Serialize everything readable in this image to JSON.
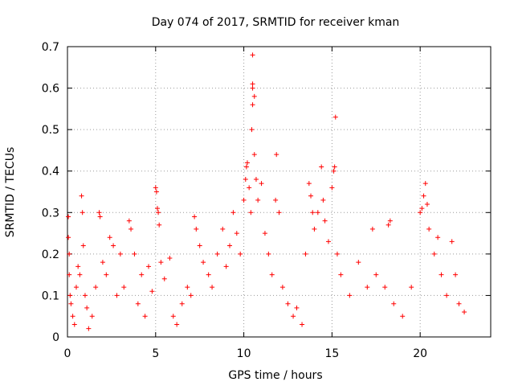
{
  "chart_data": {
    "type": "scatter",
    "title": "Day 074 of 2017, SRMTID for receiver kman",
    "xlabel": "GPS time / hours",
    "ylabel": "SRMTID / TECUs",
    "xlim": [
      0,
      24
    ],
    "ylim": [
      0,
      0.7
    ],
    "xticks": [
      0,
      5,
      10,
      15,
      20
    ],
    "xtick_labels": [
      "0",
      "5",
      "10",
      "15",
      "20"
    ],
    "yticks": [
      0,
      0.1,
      0.2,
      0.3,
      0.4,
      0.5,
      0.6,
      0.7
    ],
    "ytick_labels": [
      "0",
      "0.1",
      "0.2",
      "0.3",
      "0.4",
      "0.5",
      "0.6",
      "0.7"
    ],
    "grid": true,
    "marker": "+",
    "marker_color": "#ff0000",
    "series": [
      {
        "name": "SRMTID",
        "points": [
          [
            0.05,
            0.29
          ],
          [
            0.05,
            0.24
          ],
          [
            0.1,
            0.2
          ],
          [
            0.1,
            0.15
          ],
          [
            0.15,
            0.1
          ],
          [
            0.2,
            0.08
          ],
          [
            0.3,
            0.05
          ],
          [
            0.4,
            0.03
          ],
          [
            0.5,
            0.12
          ],
          [
            0.6,
            0.17
          ],
          [
            0.7,
            0.15
          ],
          [
            0.8,
            0.34
          ],
          [
            0.85,
            0.3
          ],
          [
            0.9,
            0.22
          ],
          [
            1.0,
            0.1
          ],
          [
            1.1,
            0.07
          ],
          [
            1.2,
            0.02
          ],
          [
            1.4,
            0.05
          ],
          [
            1.6,
            0.12
          ],
          [
            1.8,
            0.3
          ],
          [
            1.85,
            0.29
          ],
          [
            2.0,
            0.18
          ],
          [
            2.2,
            0.15
          ],
          [
            2.4,
            0.24
          ],
          [
            2.6,
            0.22
          ],
          [
            2.8,
            0.1
          ],
          [
            3.0,
            0.2
          ],
          [
            3.2,
            0.12
          ],
          [
            3.5,
            0.28
          ],
          [
            3.6,
            0.26
          ],
          [
            3.8,
            0.2
          ],
          [
            4.0,
            0.08
          ],
          [
            4.2,
            0.15
          ],
          [
            4.4,
            0.05
          ],
          [
            4.6,
            0.17
          ],
          [
            4.8,
            0.11
          ],
          [
            5.0,
            0.36
          ],
          [
            5.05,
            0.35
          ],
          [
            5.1,
            0.31
          ],
          [
            5.15,
            0.3
          ],
          [
            5.2,
            0.27
          ],
          [
            5.3,
            0.18
          ],
          [
            5.5,
            0.14
          ],
          [
            5.8,
            0.19
          ],
          [
            6.0,
            0.05
          ],
          [
            6.2,
            0.03
          ],
          [
            6.5,
            0.08
          ],
          [
            6.8,
            0.12
          ],
          [
            7.0,
            0.1
          ],
          [
            7.2,
            0.29
          ],
          [
            7.3,
            0.26
          ],
          [
            7.5,
            0.22
          ],
          [
            7.7,
            0.18
          ],
          [
            8.0,
            0.15
          ],
          [
            8.2,
            0.12
          ],
          [
            8.5,
            0.2
          ],
          [
            8.8,
            0.26
          ],
          [
            9.0,
            0.17
          ],
          [
            9.2,
            0.22
          ],
          [
            9.4,
            0.3
          ],
          [
            9.6,
            0.25
          ],
          [
            9.8,
            0.2
          ],
          [
            10.0,
            0.33
          ],
          [
            10.1,
            0.38
          ],
          [
            10.15,
            0.41
          ],
          [
            10.2,
            0.42
          ],
          [
            10.3,
            0.36
          ],
          [
            10.4,
            0.3
          ],
          [
            10.45,
            0.5
          ],
          [
            10.5,
            0.56
          ],
          [
            10.5,
            0.6
          ],
          [
            10.5,
            0.61
          ],
          [
            10.5,
            0.68
          ],
          [
            10.6,
            0.58
          ],
          [
            10.6,
            0.44
          ],
          [
            10.7,
            0.38
          ],
          [
            10.8,
            0.33
          ],
          [
            11.0,
            0.37
          ],
          [
            11.2,
            0.25
          ],
          [
            11.4,
            0.2
          ],
          [
            11.6,
            0.15
          ],
          [
            11.8,
            0.33
          ],
          [
            11.85,
            0.44
          ],
          [
            12.0,
            0.3
          ],
          [
            12.2,
            0.12
          ],
          [
            12.5,
            0.08
          ],
          [
            12.8,
            0.05
          ],
          [
            13.0,
            0.07
          ],
          [
            13.3,
            0.03
          ],
          [
            13.5,
            0.2
          ],
          [
            13.7,
            0.37
          ],
          [
            13.8,
            0.34
          ],
          [
            13.9,
            0.3
          ],
          [
            14.0,
            0.26
          ],
          [
            14.2,
            0.3
          ],
          [
            14.4,
            0.41
          ],
          [
            14.5,
            0.33
          ],
          [
            14.6,
            0.28
          ],
          [
            14.8,
            0.23
          ],
          [
            15.0,
            0.36
          ],
          [
            15.1,
            0.4
          ],
          [
            15.15,
            0.41
          ],
          [
            15.2,
            0.53
          ],
          [
            15.3,
            0.2
          ],
          [
            15.5,
            0.15
          ],
          [
            16.0,
            0.1
          ],
          [
            16.5,
            0.18
          ],
          [
            17.0,
            0.12
          ],
          [
            17.3,
            0.26
          ],
          [
            17.5,
            0.15
          ],
          [
            18.0,
            0.12
          ],
          [
            18.2,
            0.27
          ],
          [
            18.3,
            0.28
          ],
          [
            18.5,
            0.08
          ],
          [
            19.0,
            0.05
          ],
          [
            19.5,
            0.12
          ],
          [
            20.0,
            0.3
          ],
          [
            20.1,
            0.31
          ],
          [
            20.2,
            0.34
          ],
          [
            20.3,
            0.37
          ],
          [
            20.4,
            0.32
          ],
          [
            20.5,
            0.26
          ],
          [
            20.8,
            0.2
          ],
          [
            21.0,
            0.24
          ],
          [
            21.2,
            0.15
          ],
          [
            21.5,
            0.1
          ],
          [
            21.8,
            0.23
          ],
          [
            22.0,
            0.15
          ],
          [
            22.2,
            0.08
          ],
          [
            22.5,
            0.06
          ]
        ]
      }
    ]
  }
}
